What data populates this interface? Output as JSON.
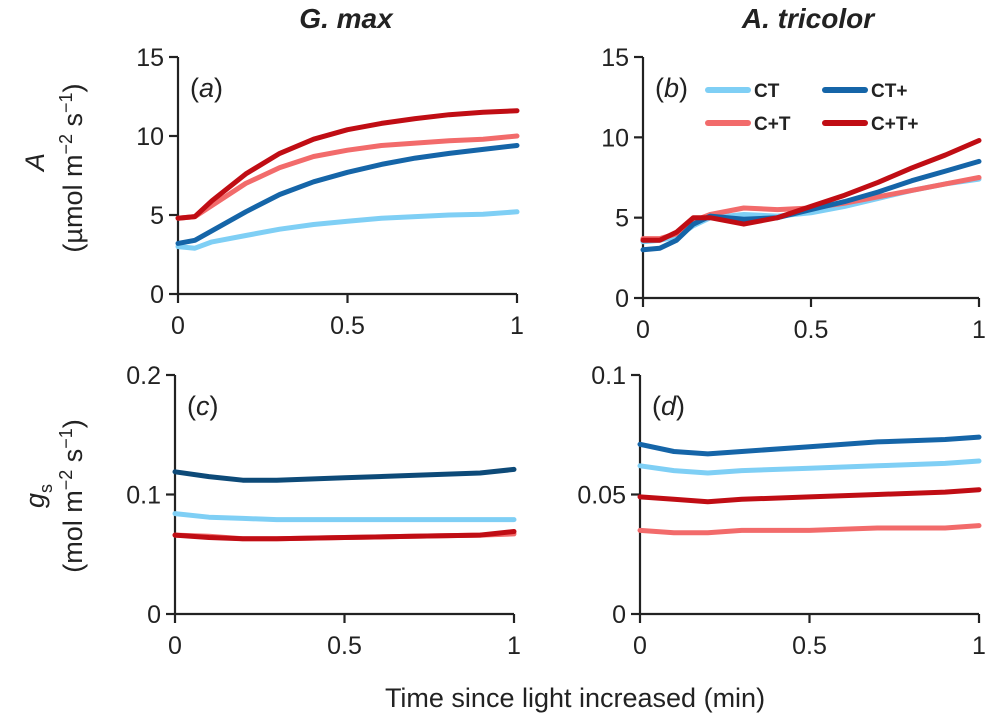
{
  "figure": {
    "column_titles": [
      "G. max",
      "A. tricolor"
    ],
    "ylabel_top": {
      "symbol": "A",
      "units": "(µmol m",
      "sup1": "−2",
      "mid": " s",
      "sup2": "−1",
      "end": ")"
    },
    "ylabel_bottom": {
      "symbol": "g",
      "sub": "s",
      "units": "(mol m",
      "sup1": "−2",
      "mid": " s",
      "sup2": "−1",
      "end": ")"
    },
    "xlabel": "Time since light increased (min)"
  },
  "colors": {
    "CT": "#7fcff5",
    "CT+": "#1565a8",
    "C+T": "#f26b6b",
    "C+T+": "#c00d14",
    "CT+_c": "#0d4a78"
  },
  "chart_data": [
    {
      "type": "line",
      "panel": "(a)",
      "xlim": [
        0,
        1
      ],
      "ylim": [
        0,
        15
      ],
      "xticks": [
        0,
        0.5,
        1
      ],
      "xtick_labels": [
        "0",
        "0.5",
        "1"
      ],
      "yticks": [
        0,
        5,
        10,
        15
      ],
      "ytick_labels": [
        "0",
        "5",
        "10",
        "15"
      ],
      "series": [
        {
          "name": "CT",
          "x": [
            0,
            0.05,
            0.1,
            0.2,
            0.3,
            0.4,
            0.5,
            0.6,
            0.7,
            0.8,
            0.9,
            1.0
          ],
          "y": [
            3.0,
            2.9,
            3.3,
            3.7,
            4.1,
            4.4,
            4.6,
            4.8,
            4.9,
            5.0,
            5.05,
            5.2
          ]
        },
        {
          "name": "CT+",
          "x": [
            0,
            0.05,
            0.1,
            0.2,
            0.3,
            0.4,
            0.5,
            0.6,
            0.7,
            0.8,
            0.9,
            1.0
          ],
          "y": [
            3.2,
            3.4,
            4.0,
            5.2,
            6.3,
            7.1,
            7.7,
            8.2,
            8.6,
            8.9,
            9.15,
            9.4
          ]
        },
        {
          "name": "C+T",
          "x": [
            0,
            0.05,
            0.1,
            0.2,
            0.3,
            0.4,
            0.5,
            0.6,
            0.7,
            0.8,
            0.9,
            1.0
          ],
          "y": [
            4.8,
            4.9,
            5.6,
            7.0,
            8.0,
            8.7,
            9.1,
            9.4,
            9.55,
            9.7,
            9.8,
            10.0
          ]
        },
        {
          "name": "C+T+",
          "x": [
            0,
            0.05,
            0.1,
            0.2,
            0.3,
            0.4,
            0.5,
            0.6,
            0.7,
            0.8,
            0.9,
            1.0
          ],
          "y": [
            4.8,
            4.9,
            5.9,
            7.6,
            8.9,
            9.8,
            10.4,
            10.8,
            11.1,
            11.35,
            11.5,
            11.6
          ]
        }
      ]
    },
    {
      "type": "line",
      "panel": "(b)",
      "xlim": [
        0,
        1
      ],
      "ylim": [
        0,
        15
      ],
      "xticks": [
        0,
        0.5,
        1
      ],
      "xtick_labels": [
        "0",
        "0.5",
        "1"
      ],
      "yticks": [
        0,
        5,
        10,
        15
      ],
      "ytick_labels": [
        "0",
        "5",
        "10",
        "15"
      ],
      "legend": {
        "position": "top-right",
        "entries": [
          "CT",
          "CT+",
          "C+T",
          "C+T+"
        ]
      },
      "series": [
        {
          "name": "CT",
          "x": [
            0,
            0.05,
            0.1,
            0.15,
            0.2,
            0.3,
            0.4,
            0.5,
            0.6,
            0.7,
            0.8,
            0.9,
            1.0
          ],
          "y": [
            3.5,
            3.6,
            3.8,
            4.5,
            5.0,
            5.2,
            5.1,
            5.3,
            5.7,
            6.2,
            6.7,
            7.1,
            7.4
          ]
        },
        {
          "name": "CT+",
          "x": [
            0,
            0.05,
            0.1,
            0.15,
            0.2,
            0.3,
            0.4,
            0.5,
            0.6,
            0.7,
            0.8,
            0.9,
            1.0
          ],
          "y": [
            3.0,
            3.1,
            3.6,
            4.6,
            5.1,
            4.9,
            5.0,
            5.5,
            6.0,
            6.6,
            7.3,
            7.9,
            8.5
          ]
        },
        {
          "name": "C+T",
          "x": [
            0,
            0.05,
            0.1,
            0.15,
            0.2,
            0.3,
            0.4,
            0.5,
            0.6,
            0.7,
            0.8,
            0.9,
            1.0
          ],
          "y": [
            3.7,
            3.7,
            4.0,
            4.8,
            5.2,
            5.6,
            5.5,
            5.6,
            5.9,
            6.3,
            6.7,
            7.1,
            7.5
          ]
        },
        {
          "name": "C+T+",
          "x": [
            0,
            0.05,
            0.1,
            0.15,
            0.2,
            0.3,
            0.4,
            0.5,
            0.6,
            0.7,
            0.8,
            0.9,
            1.0
          ],
          "y": [
            3.6,
            3.6,
            4.1,
            5.0,
            5.0,
            4.6,
            5.0,
            5.7,
            6.4,
            7.2,
            8.1,
            8.9,
            9.8
          ]
        }
      ]
    },
    {
      "type": "line",
      "panel": "(c)",
      "xlim": [
        0,
        1
      ],
      "ylim": [
        0,
        0.2
      ],
      "xticks": [
        0,
        0.5,
        1
      ],
      "xtick_labels": [
        "0",
        "0.5",
        "1"
      ],
      "yticks": [
        0,
        0.1,
        0.2
      ],
      "ytick_labels": [
        "0",
        "0.1",
        "0.2"
      ],
      "series": [
        {
          "name": "CT",
          "x": [
            0,
            0.1,
            0.2,
            0.3,
            0.5,
            0.7,
            0.9,
            1.0
          ],
          "y": [
            0.084,
            0.081,
            0.08,
            0.079,
            0.079,
            0.079,
            0.079,
            0.079
          ]
        },
        {
          "name": "CT+",
          "x": [
            0,
            0.1,
            0.2,
            0.3,
            0.5,
            0.7,
            0.9,
            1.0
          ],
          "y": [
            0.119,
            0.115,
            0.112,
            0.112,
            0.114,
            0.116,
            0.118,
            0.121
          ]
        },
        {
          "name": "C+T",
          "x": [
            0,
            0.1,
            0.2,
            0.3,
            0.5,
            0.7,
            0.9,
            1.0
          ],
          "y": [
            0.066,
            0.065,
            0.063,
            0.063,
            0.064,
            0.065,
            0.066,
            0.067
          ]
        },
        {
          "name": "C+T+",
          "x": [
            0,
            0.1,
            0.2,
            0.3,
            0.5,
            0.7,
            0.9,
            1.0
          ],
          "y": [
            0.066,
            0.064,
            0.063,
            0.063,
            0.064,
            0.065,
            0.066,
            0.069
          ]
        }
      ]
    },
    {
      "type": "line",
      "panel": "(d)",
      "xlim": [
        0,
        1
      ],
      "ylim": [
        0,
        0.1
      ],
      "xticks": [
        0,
        0.5,
        1
      ],
      "xtick_labels": [
        "0",
        "0.5",
        "1"
      ],
      "yticks": [
        0,
        0.05,
        0.1
      ],
      "ytick_labels": [
        "0",
        "0.05",
        "0.1"
      ],
      "series": [
        {
          "name": "CT",
          "x": [
            0,
            0.1,
            0.2,
            0.3,
            0.5,
            0.7,
            0.9,
            1.0
          ],
          "y": [
            0.062,
            0.06,
            0.059,
            0.06,
            0.061,
            0.062,
            0.063,
            0.064
          ]
        },
        {
          "name": "CT+",
          "x": [
            0,
            0.1,
            0.2,
            0.3,
            0.5,
            0.7,
            0.9,
            1.0
          ],
          "y": [
            0.071,
            0.068,
            0.067,
            0.068,
            0.07,
            0.072,
            0.073,
            0.074
          ]
        },
        {
          "name": "C+T",
          "x": [
            0,
            0.1,
            0.2,
            0.3,
            0.5,
            0.7,
            0.9,
            1.0
          ],
          "y": [
            0.035,
            0.034,
            0.034,
            0.035,
            0.035,
            0.036,
            0.036,
            0.037
          ]
        },
        {
          "name": "C+T+",
          "x": [
            0,
            0.1,
            0.2,
            0.3,
            0.5,
            0.7,
            0.9,
            1.0
          ],
          "y": [
            0.049,
            0.048,
            0.047,
            0.048,
            0.049,
            0.05,
            0.051,
            0.052
          ]
        }
      ]
    }
  ]
}
